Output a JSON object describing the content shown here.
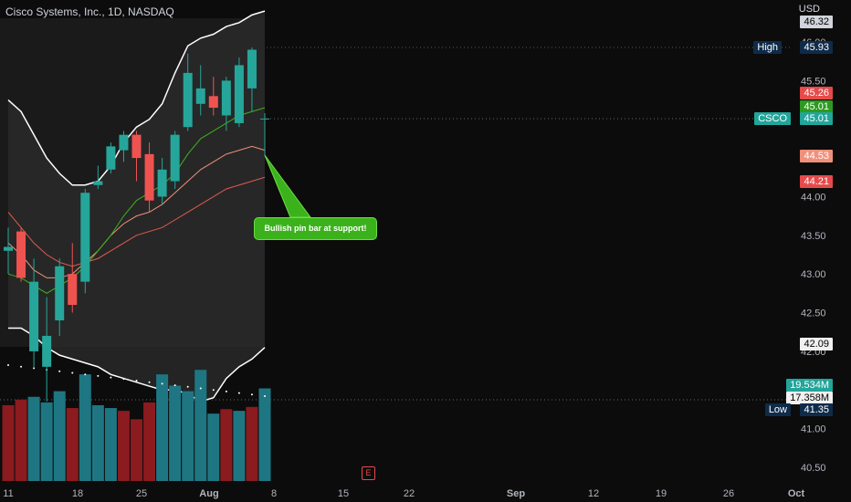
{
  "header": {
    "symbol_title": "Cisco Systems, Inc., 1D, NASDAQ",
    "currency": "USD"
  },
  "colors": {
    "up": "#26a69a",
    "down": "#ef5350",
    "bg": "#0c0c0c",
    "vol_up": "#1f7683",
    "vol_down": "#8b1b1f"
  },
  "price_tags": {
    "top_cut": "46.32",
    "high_label": "High",
    "high": "45.93",
    "p1": "45.26",
    "p2": "45.01",
    "symbol": "CSCO",
    "last": "45.01",
    "p3": "44.53",
    "p4": "44.21",
    "bb_low": "42.09",
    "vol1": "19.534M",
    "vol2": "17.358M",
    "low_label": "Low",
    "low": "41.35"
  },
  "annotation": {
    "text": "Bullish pin bar at support!"
  },
  "earnings_marker": "E",
  "chart_data": {
    "type": "candlestick",
    "yaxis_ticks": [
      "46.00",
      "45.50",
      "45.00",
      "44.50",
      "44.00",
      "43.50",
      "43.00",
      "42.50",
      "42.00",
      "41.50",
      "41.00",
      "40.50"
    ],
    "ylim": [
      40.4,
      46.35
    ],
    "xaxis_ticks": [
      "11",
      "18",
      "25",
      "Aug",
      "8",
      "15",
      "22",
      "Sep",
      "12",
      "19",
      "26",
      "Oct"
    ],
    "candles": [
      {
        "o": 43.3,
        "h": 43.6,
        "l": 43.0,
        "c": 43.35
      },
      {
        "o": 43.55,
        "h": 43.6,
        "l": 42.9,
        "c": 42.95
      },
      {
        "o": 42.0,
        "h": 43.2,
        "l": 41.8,
        "c": 42.9
      },
      {
        "o": 41.8,
        "h": 42.7,
        "l": 41.35,
        "c": 42.2
      },
      {
        "o": 42.4,
        "h": 43.2,
        "l": 42.2,
        "c": 43.1
      },
      {
        "o": 43.0,
        "h": 43.4,
        "l": 42.5,
        "c": 42.6
      },
      {
        "o": 42.9,
        "h": 44.1,
        "l": 42.75,
        "c": 44.05
      },
      {
        "o": 44.15,
        "h": 44.4,
        "l": 44.1,
        "c": 44.2
      },
      {
        "o": 44.35,
        "h": 44.7,
        "l": 44.3,
        "c": 44.65
      },
      {
        "o": 44.6,
        "h": 44.85,
        "l": 44.45,
        "c": 44.8
      },
      {
        "o": 44.8,
        "h": 44.85,
        "l": 44.2,
        "c": 44.5
      },
      {
        "o": 44.55,
        "h": 44.7,
        "l": 43.8,
        "c": 43.95
      },
      {
        "o": 44.0,
        "h": 44.5,
        "l": 43.9,
        "c": 44.35
      },
      {
        "o": 44.2,
        "h": 44.85,
        "l": 44.1,
        "c": 44.8
      },
      {
        "o": 44.9,
        "h": 45.85,
        "l": 44.85,
        "c": 45.6
      },
      {
        "o": 45.2,
        "h": 45.7,
        "l": 45.05,
        "c": 45.4
      },
      {
        "o": 45.3,
        "h": 45.55,
        "l": 45.05,
        "c": 45.15
      },
      {
        "o": 45.05,
        "h": 45.55,
        "l": 44.85,
        "c": 45.5
      },
      {
        "o": 44.95,
        "h": 45.8,
        "l": 44.9,
        "c": 45.7
      },
      {
        "o": 45.4,
        "h": 45.93,
        "l": 45.1,
        "c": 45.9
      },
      {
        "o": 45.01,
        "h": 45.08,
        "l": 44.53,
        "c": 45.01
      }
    ],
    "volume_ylim": [
      0,
      20
    ],
    "volume": [
      {
        "v": 13.5,
        "up": false
      },
      {
        "v": 14.5,
        "up": false
      },
      {
        "v": 15,
        "up": true
      },
      {
        "v": 14,
        "up": true
      },
      {
        "v": 16,
        "up": true
      },
      {
        "v": 13,
        "up": false
      },
      {
        "v": 19,
        "up": true
      },
      {
        "v": 13.5,
        "up": true
      },
      {
        "v": 13,
        "up": true
      },
      {
        "v": 12.5,
        "up": false
      },
      {
        "v": 11,
        "up": false
      },
      {
        "v": 14,
        "up": false
      },
      {
        "v": 19,
        "up": true
      },
      {
        "v": 17,
        "up": true
      },
      {
        "v": 16,
        "up": true
      },
      {
        "v": 19.8,
        "up": true
      },
      {
        "v": 12,
        "up": true
      },
      {
        "v": 12.8,
        "up": false
      },
      {
        "v": 12.5,
        "up": true
      },
      {
        "v": 13.2,
        "up": false
      },
      {
        "v": 16.5,
        "up": true
      }
    ]
  }
}
